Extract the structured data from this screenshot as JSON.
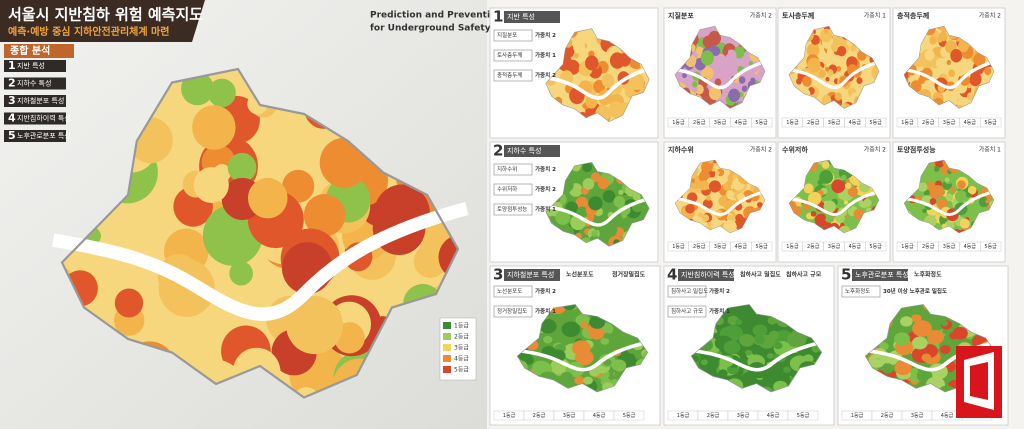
{
  "header": {
    "title": "서울시 지반침하 위험 예측지도",
    "subtitle": "예측·예방 중심 지하안전관리체계 마련",
    "english": [
      "Prediction and Prevention",
      "for Underground Safety"
    ]
  },
  "summary": {
    "title": "종합 분석",
    "items": [
      {
        "number": "1",
        "label": "지반 특성"
      },
      {
        "number": "2",
        "label": "지하수 특성"
      },
      {
        "number": "3",
        "label": "지하철분포 특성"
      },
      {
        "number": "4",
        "label": "지반침하이력 특성"
      },
      {
        "number": "5",
        "label": "노후관로분포 특성"
      }
    ]
  },
  "grades": [
    "1등급",
    "2등급",
    "3등급",
    "4등급",
    "5등급"
  ],
  "sections": [
    {
      "number": "1",
      "title": "지반 특성",
      "factors": [
        {
          "name": "지질분포",
          "weight": "가중치 2"
        },
        {
          "name": "토사층두께",
          "weight": "가중치 1"
        },
        {
          "name": "충적층두께",
          "weight": "가중치 2"
        }
      ]
    },
    {
      "number": "2",
      "title": "지하수 특성",
      "factors": [
        {
          "name": "지하수위",
          "weight": "가중치 2"
        },
        {
          "name": "수위저하",
          "weight": "가중치 2"
        },
        {
          "name": "토양점투성능",
          "weight": "가중치 1"
        }
      ]
    },
    {
      "number": "3",
      "title": "지하철분포 특성",
      "factors": [
        {
          "name": "노선분포도",
          "weight": "가중치 2"
        },
        {
          "name": "정거장밀집도",
          "weight": "가중치 1"
        }
      ]
    },
    {
      "number": "4",
      "title": "지반침하이력 특성",
      "factors": [
        {
          "name": "침하사고 밀집도",
          "weight": "가중치 2"
        },
        {
          "name": "침하사고 규모",
          "weight": "가중치 1"
        }
      ]
    },
    {
      "number": "5",
      "title": "노후관로분포 특성",
      "factors": [
        {
          "name": "노후화정도",
          "weight": "30년 이상 노후관로 밀집도"
        }
      ]
    }
  ]
}
